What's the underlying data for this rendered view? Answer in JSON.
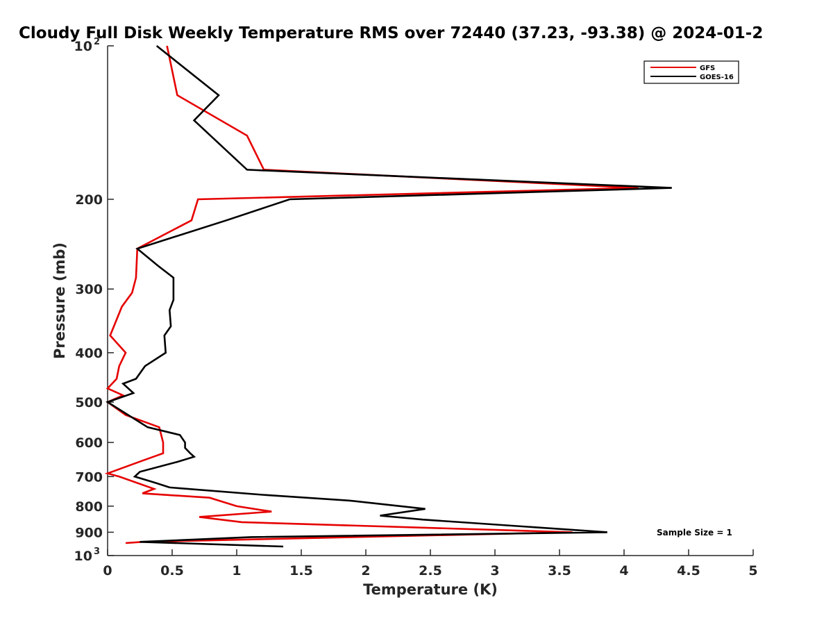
{
  "chart_data": {
    "type": "line",
    "title": "Cloudy Full Disk Weekly Temperature RMS over 72440 (37.23, -93.38) @ 2024-01-2",
    "xlabel": "Temperature (K)",
    "ylabel": "Pressure (mb)",
    "xlim": [
      0,
      5
    ],
    "ylim": [
      100,
      1000
    ],
    "y_scale": "log",
    "y_reversed": true,
    "grid": false,
    "legend_position": "top-right",
    "x_ticks": [
      "0",
      "0.5",
      "1",
      "1.5",
      "2",
      "2.5",
      "3",
      "3.5",
      "4",
      "4.5",
      "5"
    ],
    "y_ticks": [
      {
        "value": 100,
        "label": "10",
        "exp": "2"
      },
      {
        "value": 200,
        "label": "200"
      },
      {
        "value": 300,
        "label": "300"
      },
      {
        "value": 400,
        "label": "400"
      },
      {
        "value": 500,
        "label": "500"
      },
      {
        "value": 600,
        "label": "600"
      },
      {
        "value": 700,
        "label": "700"
      },
      {
        "value": 800,
        "label": "800"
      },
      {
        "value": 900,
        "label": "900"
      },
      {
        "value": 1000,
        "label": "10",
        "exp": "3"
      }
    ],
    "annotation": "Sample Size = 1",
    "series": [
      {
        "name": "GFS",
        "color": "#e60000",
        "points": [
          [
            0.46,
            100
          ],
          [
            0.54,
            125
          ],
          [
            1.08,
            150
          ],
          [
            1.21,
            175
          ],
          [
            4.11,
            190
          ],
          [
            0.7,
            200
          ],
          [
            0.65,
            220
          ],
          [
            0.23,
            250
          ],
          [
            0.22,
            285
          ],
          [
            0.19,
            305
          ],
          [
            0.11,
            325
          ],
          [
            0.02,
            370
          ],
          [
            0.14,
            400
          ],
          [
            0.09,
            425
          ],
          [
            0.07,
            450
          ],
          [
            0.0,
            470
          ],
          [
            0.12,
            485
          ],
          [
            0.0,
            500
          ],
          [
            0.14,
            530
          ],
          [
            0.4,
            560
          ],
          [
            0.43,
            600
          ],
          [
            0.43,
            630
          ],
          [
            0.28,
            650
          ],
          [
            0.0,
            690
          ],
          [
            0.09,
            700
          ],
          [
            0.36,
            740
          ],
          [
            0.27,
            755
          ],
          [
            0.79,
            770
          ],
          [
            1.0,
            800
          ],
          [
            1.27,
            820
          ],
          [
            0.71,
            840
          ],
          [
            1.04,
            860
          ],
          [
            3.6,
            900
          ],
          [
            0.27,
            940
          ],
          [
            0.14,
            945
          ]
        ]
      },
      {
        "name": "GOES-16",
        "color": "#000000",
        "points": [
          [
            0.38,
            100
          ],
          [
            0.86,
            125
          ],
          [
            0.67,
            140
          ],
          [
            1.08,
            175
          ],
          [
            4.37,
            190
          ],
          [
            1.41,
            200
          ],
          [
            0.92,
            220
          ],
          [
            0.23,
            250
          ],
          [
            0.39,
            270
          ],
          [
            0.51,
            285
          ],
          [
            0.51,
            315
          ],
          [
            0.48,
            330
          ],
          [
            0.49,
            355
          ],
          [
            0.44,
            370
          ],
          [
            0.45,
            400
          ],
          [
            0.29,
            425
          ],
          [
            0.22,
            450
          ],
          [
            0.12,
            460
          ],
          [
            0.2,
            480
          ],
          [
            0.0,
            500
          ],
          [
            0.31,
            560
          ],
          [
            0.56,
            580
          ],
          [
            0.6,
            600
          ],
          [
            0.6,
            615
          ],
          [
            0.64,
            630
          ],
          [
            0.67,
            640
          ],
          [
            0.54,
            655
          ],
          [
            0.25,
            685
          ],
          [
            0.21,
            700
          ],
          [
            0.37,
            720
          ],
          [
            0.48,
            735
          ],
          [
            1.2,
            760
          ],
          [
            1.87,
            780
          ],
          [
            2.46,
            810
          ],
          [
            2.11,
            835
          ],
          [
            2.44,
            850
          ],
          [
            3.87,
            900
          ],
          [
            1.11,
            920
          ],
          [
            0.25,
            940
          ],
          [
            1.36,
            960
          ]
        ]
      }
    ]
  }
}
